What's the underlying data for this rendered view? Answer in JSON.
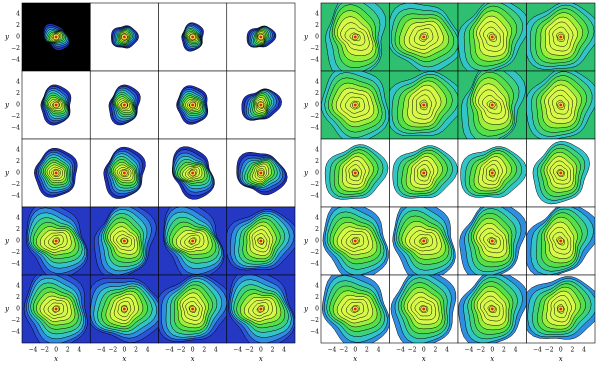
{
  "panels": [
    {
      "rows": 5,
      "cols": 4,
      "x_label": "x",
      "y_label": "y",
      "ticks": [
        "−4",
        "−2",
        "0",
        "2",
        "4"
      ]
    },
    {
      "rows": 5,
      "cols": 4,
      "x_label": "x",
      "y_label": "y",
      "ticks": [
        "−4",
        "−2",
        "0",
        "2",
        "4"
      ]
    }
  ]
}
